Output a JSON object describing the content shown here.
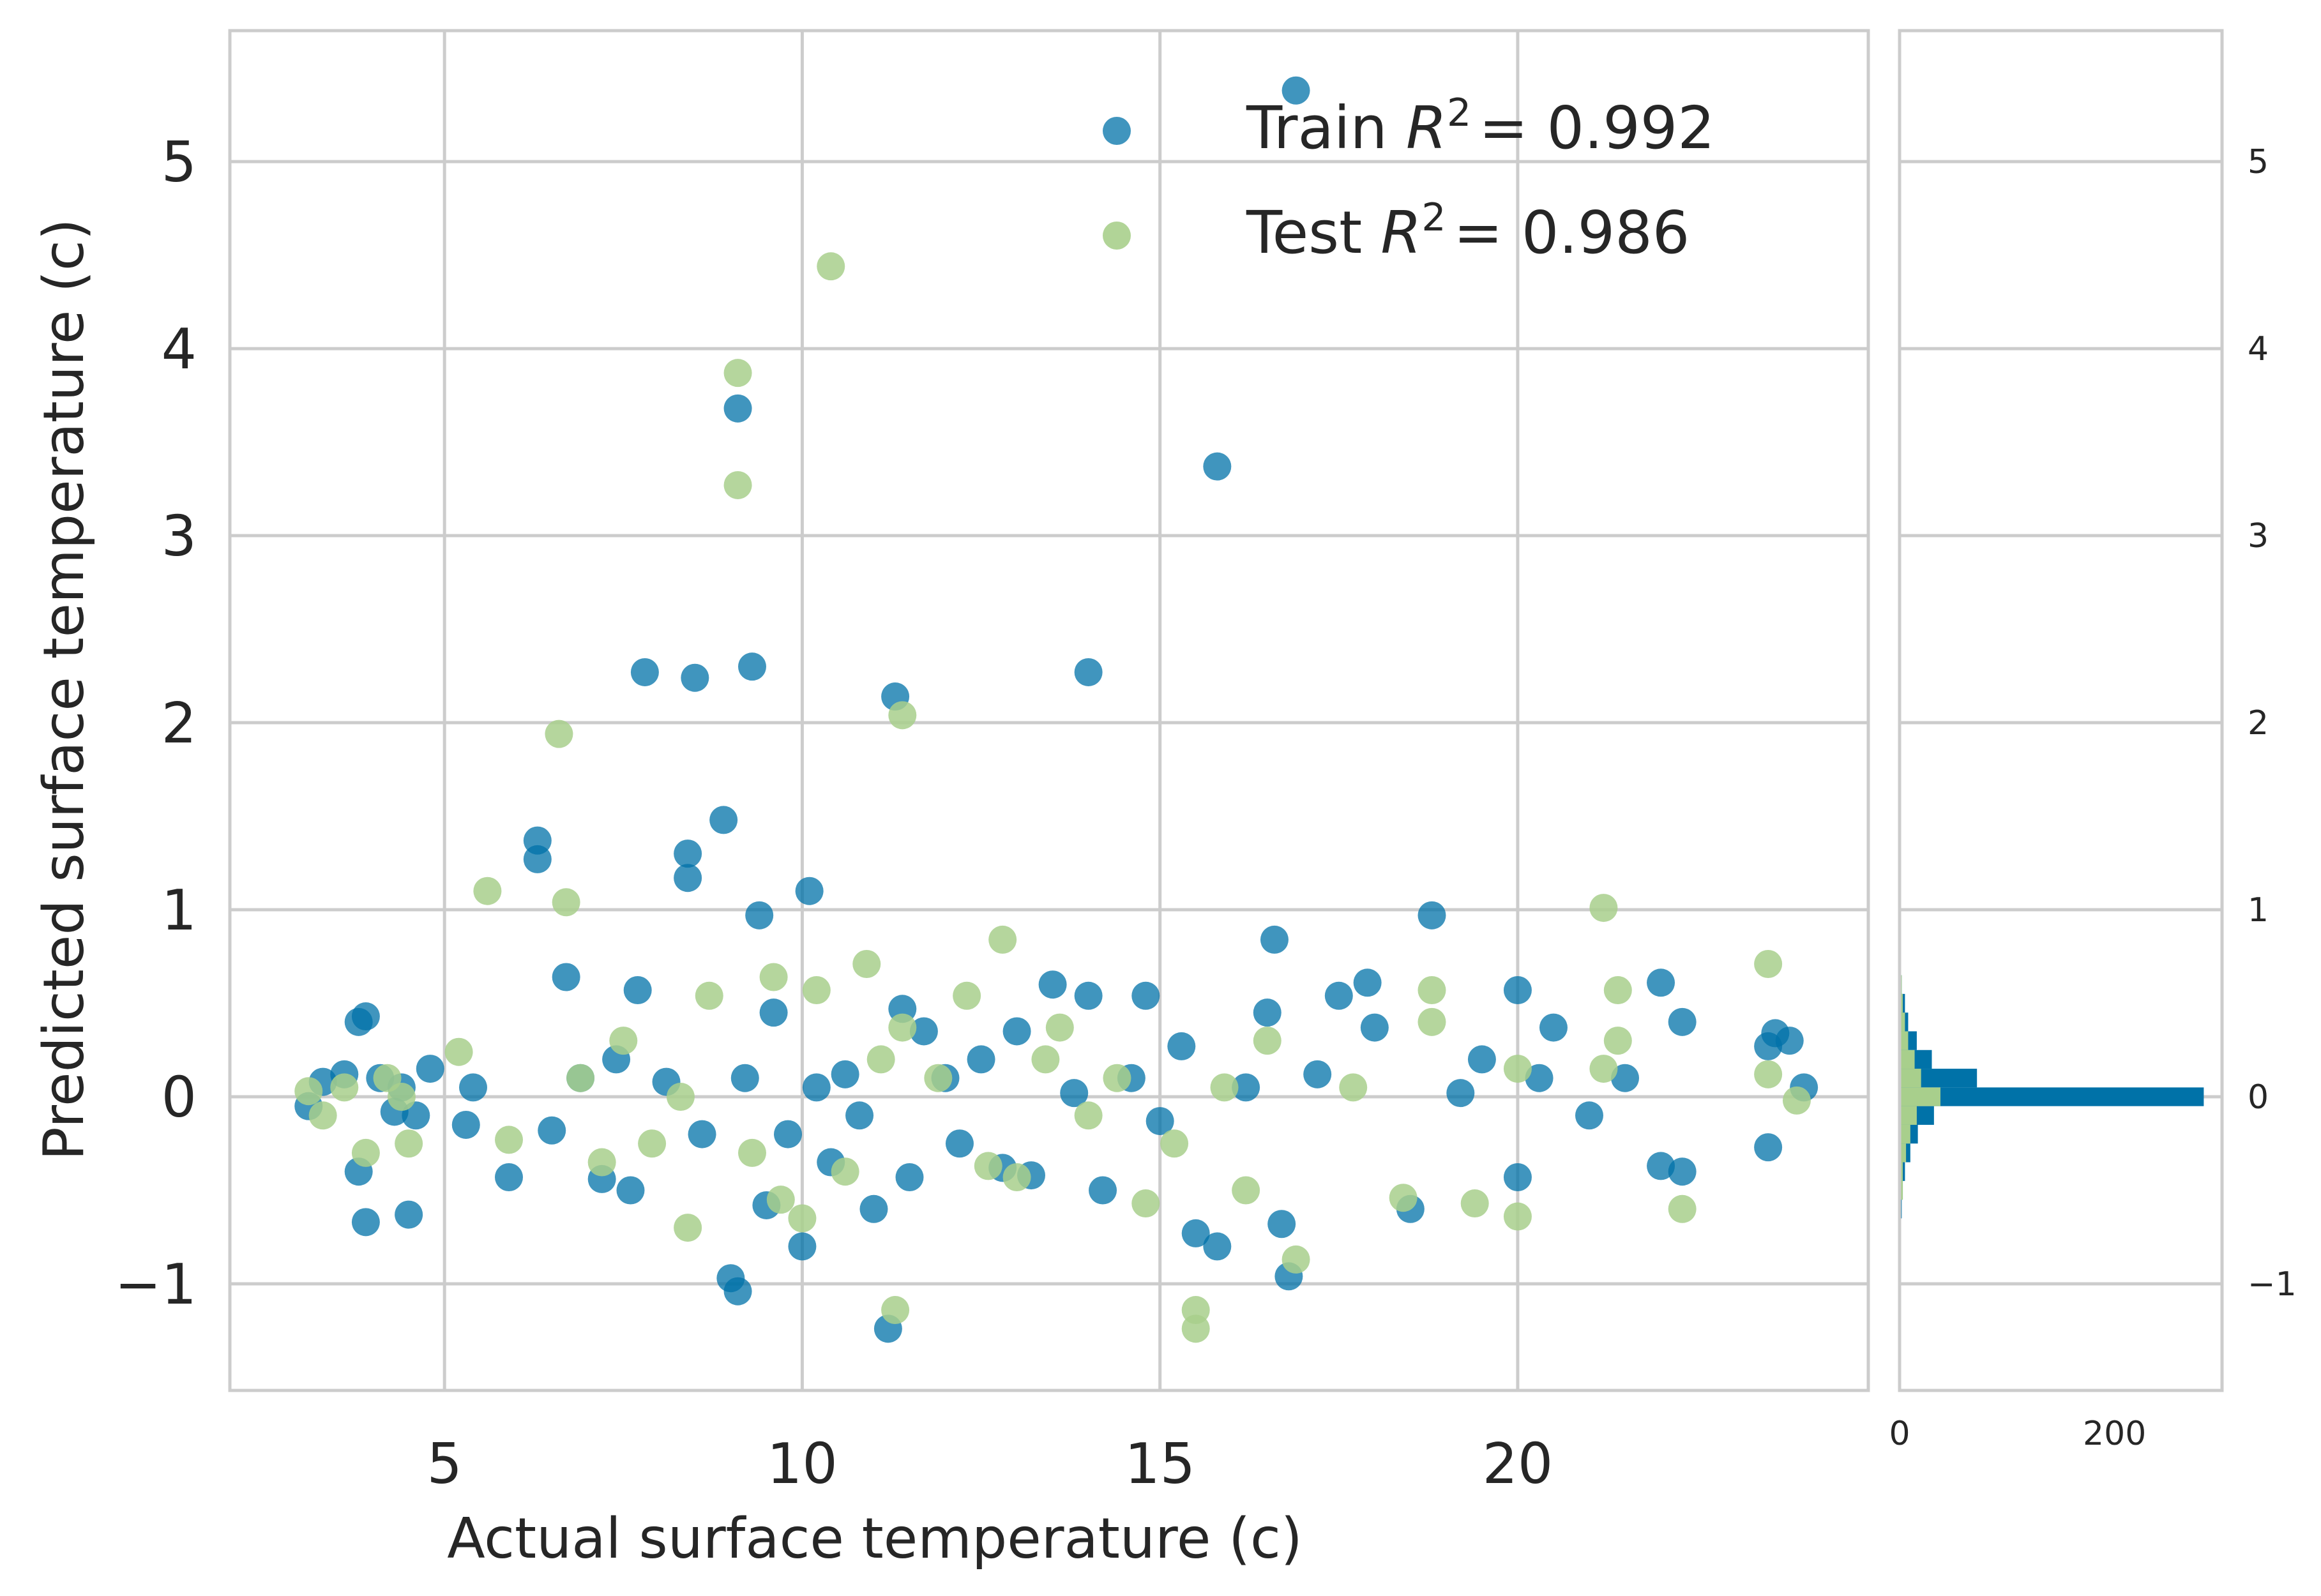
{
  "chart_data": [
    {
      "type": "scatter",
      "title": "",
      "xlabel": "Actual surface temperature (c)",
      "ylabel": "Predicted surface temperature (c)",
      "xlim": [
        2.0,
        24.9
      ],
      "ylim": [
        -1.57,
        5.7
      ],
      "xticks": [
        5,
        10,
        15,
        20
      ],
      "yticks": [
        -1,
        0,
        1,
        2,
        3,
        4,
        5
      ],
      "xtick_labels": [
        "5",
        "10",
        "15",
        "20"
      ],
      "ytick_labels": [
        "−1",
        "0",
        "1",
        "2",
        "3",
        "4",
        "5"
      ],
      "grid": true,
      "legend_position": "top-right",
      "legend": {
        "train_prefix": "Train ",
        "train_r2": "= 0.992",
        "test_prefix": "Test ",
        "test_r2": "= 0.986",
        "r_symbol": "R",
        "r_exponent": "2"
      },
      "series": [
        {
          "name": "Train",
          "color": "#0072a8",
          "points": [
            [
              3.1,
              -0.05
            ],
            [
              3.3,
              0.08
            ],
            [
              3.6,
              0.12
            ],
            [
              3.8,
              0.4
            ],
            [
              3.9,
              0.43
            ],
            [
              3.8,
              -0.4
            ],
            [
              3.9,
              -0.67
            ],
            [
              4.1,
              0.1
            ],
            [
              4.3,
              -0.08
            ],
            [
              4.4,
              0.05
            ],
            [
              4.5,
              -0.63
            ],
            [
              4.6,
              -0.1
            ],
            [
              4.8,
              0.15
            ],
            [
              5.3,
              -0.15
            ],
            [
              5.4,
              0.05
            ],
            [
              5.9,
              -0.43
            ],
            [
              6.3,
              1.37
            ],
            [
              6.3,
              1.27
            ],
            [
              6.5,
              -0.18
            ],
            [
              6.7,
              0.64
            ],
            [
              6.9,
              0.1
            ],
            [
              7.2,
              -0.44
            ],
            [
              7.4,
              0.2
            ],
            [
              7.6,
              -0.5
            ],
            [
              7.7,
              0.57
            ],
            [
              7.8,
              2.27
            ],
            [
              8.1,
              0.08
            ],
            [
              8.4,
              1.3
            ],
            [
              8.4,
              1.17
            ],
            [
              8.5,
              2.24
            ],
            [
              8.6,
              -0.2
            ],
            [
              8.9,
              1.48
            ],
            [
              9.0,
              -0.97
            ],
            [
              9.1,
              -1.04
            ],
            [
              9.1,
              3.68
            ],
            [
              9.2,
              0.1
            ],
            [
              9.3,
              2.3
            ],
            [
              9.4,
              0.97
            ],
            [
              9.5,
              -0.58
            ],
            [
              9.6,
              0.45
            ],
            [
              9.8,
              -0.2
            ],
            [
              10.0,
              -0.8
            ],
            [
              10.1,
              1.1
            ],
            [
              10.2,
              0.05
            ],
            [
              10.4,
              -0.35
            ],
            [
              10.6,
              0.12
            ],
            [
              10.8,
              -0.1
            ],
            [
              11.0,
              -0.6
            ],
            [
              11.2,
              -1.24
            ],
            [
              11.3,
              2.14
            ],
            [
              11.4,
              0.47
            ],
            [
              11.5,
              -0.43
            ],
            [
              11.7,
              0.35
            ],
            [
              12.0,
              0.1
            ],
            [
              12.2,
              -0.25
            ],
            [
              12.5,
              0.2
            ],
            [
              12.8,
              -0.38
            ],
            [
              13.0,
              0.35
            ],
            [
              13.2,
              -0.42
            ],
            [
              13.5,
              0.6
            ],
            [
              13.8,
              0.02
            ],
            [
              14.0,
              0.54
            ],
            [
              14.0,
              2.27
            ],
            [
              14.2,
              -0.5
            ],
            [
              14.6,
              0.1
            ],
            [
              14.8,
              0.54
            ],
            [
              15.0,
              -0.13
            ],
            [
              15.3,
              0.27
            ],
            [
              15.5,
              -0.73
            ],
            [
              15.8,
              -0.8
            ],
            [
              15.8,
              3.37
            ],
            [
              16.2,
              0.05
            ],
            [
              16.5,
              0.45
            ],
            [
              16.6,
              0.84
            ],
            [
              16.7,
              -0.68
            ],
            [
              16.8,
              -0.96
            ],
            [
              16.9,
              5.38
            ],
            [
              17.2,
              0.12
            ],
            [
              17.5,
              0.54
            ],
            [
              17.9,
              0.61
            ],
            [
              18.0,
              0.37
            ],
            [
              18.5,
              -0.6
            ],
            [
              18.8,
              0.97
            ],
            [
              19.2,
              0.02
            ],
            [
              19.5,
              0.2
            ],
            [
              20.0,
              0.57
            ],
            [
              20.0,
              -0.43
            ],
            [
              20.3,
              0.1
            ],
            [
              20.5,
              0.37
            ],
            [
              21.0,
              -0.1
            ],
            [
              21.5,
              0.1
            ],
            [
              22.0,
              0.61
            ],
            [
              22.0,
              -0.37
            ],
            [
              22.3,
              0.4
            ],
            [
              22.3,
              -0.4
            ],
            [
              23.5,
              0.27
            ],
            [
              23.5,
              -0.27
            ],
            [
              23.6,
              0.34
            ],
            [
              23.8,
              0.3
            ],
            [
              24.0,
              0.05
            ]
          ]
        },
        {
          "name": "Test",
          "color": "#a8cf8c",
          "points": [
            [
              3.1,
              0.03
            ],
            [
              3.3,
              -0.1
            ],
            [
              3.6,
              0.05
            ],
            [
              3.9,
              -0.3
            ],
            [
              4.2,
              0.1
            ],
            [
              4.4,
              0.0
            ],
            [
              4.5,
              -0.25
            ],
            [
              5.2,
              0.24
            ],
            [
              5.6,
              1.1
            ],
            [
              5.9,
              -0.23
            ],
            [
              6.6,
              1.94
            ],
            [
              6.7,
              1.04
            ],
            [
              6.9,
              0.1
            ],
            [
              7.2,
              -0.35
            ],
            [
              7.5,
              0.3
            ],
            [
              7.9,
              -0.25
            ],
            [
              8.3,
              0.0
            ],
            [
              8.4,
              -0.7
            ],
            [
              8.7,
              0.54
            ],
            [
              9.1,
              3.87
            ],
            [
              9.1,
              3.27
            ],
            [
              9.3,
              -0.3
            ],
            [
              9.6,
              0.64
            ],
            [
              9.7,
              -0.55
            ],
            [
              10.0,
              -0.65
            ],
            [
              10.2,
              0.57
            ],
            [
              10.4,
              4.44
            ],
            [
              10.6,
              -0.4
            ],
            [
              10.9,
              0.71
            ],
            [
              11.1,
              0.2
            ],
            [
              11.3,
              -1.14
            ],
            [
              11.4,
              2.04
            ],
            [
              11.4,
              0.37
            ],
            [
              11.9,
              0.1
            ],
            [
              12.3,
              0.54
            ],
            [
              12.6,
              -0.37
            ],
            [
              12.8,
              0.84
            ],
            [
              13.0,
              -0.43
            ],
            [
              13.4,
              0.2
            ],
            [
              13.6,
              0.37
            ],
            [
              14.0,
              -0.1
            ],
            [
              14.4,
              0.1
            ],
            [
              14.8,
              -0.57
            ],
            [
              15.2,
              -0.25
            ],
            [
              15.5,
              -1.14
            ],
            [
              15.5,
              -1.24
            ],
            [
              15.9,
              0.05
            ],
            [
              16.2,
              -0.5
            ],
            [
              16.5,
              0.3
            ],
            [
              16.9,
              -0.87
            ],
            [
              17.7,
              0.05
            ],
            [
              18.4,
              -0.54
            ],
            [
              18.8,
              0.57
            ],
            [
              18.8,
              0.4
            ],
            [
              19.4,
              -0.57
            ],
            [
              20.0,
              -0.64
            ],
            [
              20.0,
              0.15
            ],
            [
              21.2,
              0.15
            ],
            [
              21.2,
              1.01
            ],
            [
              21.4,
              0.57
            ],
            [
              21.4,
              0.3
            ],
            [
              22.3,
              -0.6
            ],
            [
              23.5,
              0.71
            ],
            [
              23.5,
              0.12
            ],
            [
              23.9,
              -0.02
            ]
          ]
        }
      ]
    },
    {
      "type": "histogram",
      "orientation": "horizontal",
      "title": "",
      "xlim": [
        0,
        300
      ],
      "ylim": [
        -1.57,
        5.7
      ],
      "xticks": [
        0,
        200
      ],
      "yticks": [
        -1,
        0,
        1,
        2,
        3,
        4,
        5
      ],
      "xtick_labels": [
        "0",
        "200"
      ],
      "ytick_labels": [
        "−1",
        "0",
        "1",
        "2",
        "3",
        "4",
        "5"
      ],
      "bin_width": 0.1,
      "series": [
        {
          "name": "Train",
          "color": "#0072a8",
          "bins": [
            [
              -0.6,
              2
            ],
            [
              -0.5,
              3
            ],
            [
              -0.4,
              5
            ],
            [
              -0.3,
              10
            ],
            [
              -0.2,
              17
            ],
            [
              -0.1,
              32
            ],
            [
              0.0,
              283
            ],
            [
              0.1,
              72
            ],
            [
              0.2,
              30
            ],
            [
              0.3,
              16
            ],
            [
              0.4,
              8
            ],
            [
              0.5,
              5
            ],
            [
              0.6,
              2
            ],
            [
              2.2,
              1
            ]
          ]
        },
        {
          "name": "Test",
          "color": "#a8cf8c",
          "bins": [
            [
              -0.6,
              1
            ],
            [
              -0.5,
              3
            ],
            [
              -0.4,
              3
            ],
            [
              -0.3,
              6
            ],
            [
              -0.2,
              10
            ],
            [
              -0.1,
              16
            ],
            [
              0.0,
              38
            ],
            [
              0.1,
              20
            ],
            [
              0.2,
              14
            ],
            [
              0.3,
              8
            ],
            [
              0.4,
              5
            ],
            [
              0.5,
              3
            ],
            [
              0.6,
              2
            ],
            [
              -1.2,
              1
            ]
          ]
        }
      ]
    }
  ]
}
